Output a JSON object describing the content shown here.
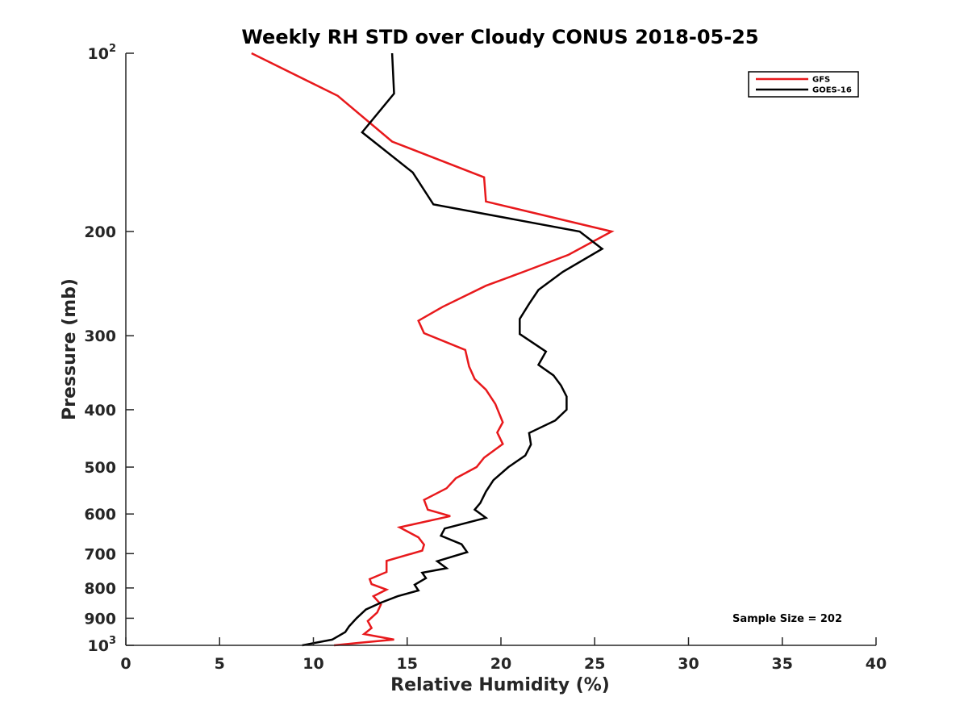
{
  "chart_data": {
    "type": "line",
    "title": "Weekly RH STD over Cloudy CONUS 2018-05-25",
    "xlabel": "Relative Humidity (%)",
    "ylabel": "Pressure (mb)",
    "xlim": [
      0,
      40
    ],
    "ylim": [
      100,
      1000
    ],
    "yscale": "log",
    "y_reversed": true,
    "grid": false,
    "legend_position": "top-right",
    "x_ticks": [
      0,
      5,
      10,
      15,
      20,
      25,
      30,
      35,
      40
    ],
    "y_ticks": [
      {
        "value": 100,
        "base": "10",
        "exp": "2"
      },
      {
        "value": 200,
        "label": "200"
      },
      {
        "value": 300,
        "label": "300"
      },
      {
        "value": 400,
        "label": "400"
      },
      {
        "value": 500,
        "label": "500"
      },
      {
        "value": 600,
        "label": "600"
      },
      {
        "value": 700,
        "label": "700"
      },
      {
        "value": 800,
        "label": "800"
      },
      {
        "value": 900,
        "label": "900"
      },
      {
        "value": 1000,
        "base": "10",
        "exp": "3"
      }
    ],
    "annotation": "Sample Size = 202",
    "series": [
      {
        "name": "GFS",
        "color": "#e8191c",
        "points": [
          [
            6.7,
            100
          ],
          [
            11.3,
            118
          ],
          [
            14.2,
            141
          ],
          [
            19.1,
            162
          ],
          [
            19.2,
            178
          ],
          [
            25.9,
            200
          ],
          [
            23.6,
            219
          ],
          [
            21.2,
            234
          ],
          [
            19.2,
            247
          ],
          [
            16.9,
            268
          ],
          [
            15.6,
            283
          ],
          [
            15.9,
            297
          ],
          [
            18.1,
            317
          ],
          [
            18.3,
            338
          ],
          [
            18.6,
            355
          ],
          [
            19.2,
            370
          ],
          [
            19.7,
            391
          ],
          [
            20.1,
            420
          ],
          [
            19.8,
            437
          ],
          [
            20.1,
            457
          ],
          [
            19.1,
            482
          ],
          [
            18.7,
            500
          ],
          [
            17.6,
            522
          ],
          [
            17.1,
            543
          ],
          [
            15.9,
            568
          ],
          [
            16.1,
            590
          ],
          [
            17.3,
            605
          ],
          [
            14.6,
            632
          ],
          [
            15.6,
            657
          ],
          [
            15.9,
            676
          ],
          [
            15.8,
            692
          ],
          [
            13.9,
            720
          ],
          [
            13.9,
            752
          ],
          [
            13.0,
            773
          ],
          [
            13.1,
            788
          ],
          [
            13.9,
            805
          ],
          [
            13.2,
            826
          ],
          [
            13.6,
            853
          ],
          [
            13.4,
            880
          ],
          [
            12.9,
            910
          ],
          [
            13.1,
            935
          ],
          [
            12.7,
            957
          ],
          [
            14.3,
            978
          ],
          [
            12.5,
            990
          ],
          [
            11.1,
            1000
          ]
        ]
      },
      {
        "name": "GOES-16",
        "color": "#000000",
        "points": [
          [
            14.2,
            100
          ],
          [
            14.3,
            117
          ],
          [
            12.6,
            136
          ],
          [
            15.3,
            159
          ],
          [
            16.4,
            180
          ],
          [
            24.2,
            200
          ],
          [
            25.4,
            214
          ],
          [
            23.3,
            234
          ],
          [
            22.0,
            251
          ],
          [
            21.5,
            265
          ],
          [
            21.0,
            281
          ],
          [
            21.0,
            298
          ],
          [
            22.4,
            319
          ],
          [
            22.0,
            336
          ],
          [
            22.8,
            350
          ],
          [
            23.2,
            364
          ],
          [
            23.5,
            380
          ],
          [
            23.5,
            400
          ],
          [
            22.9,
            417
          ],
          [
            21.5,
            438
          ],
          [
            21.6,
            458
          ],
          [
            21.3,
            478
          ],
          [
            20.4,
            500
          ],
          [
            19.6,
            526
          ],
          [
            19.2,
            550
          ],
          [
            18.9,
            575
          ],
          [
            18.6,
            590
          ],
          [
            19.2,
            609
          ],
          [
            17.0,
            635
          ],
          [
            16.8,
            653
          ],
          [
            17.9,
            675
          ],
          [
            18.2,
            696
          ],
          [
            16.6,
            721
          ],
          [
            17.1,
            741
          ],
          [
            15.8,
            754
          ],
          [
            16.0,
            770
          ],
          [
            15.4,
            790
          ],
          [
            15.6,
            808
          ],
          [
            14.5,
            826
          ],
          [
            13.6,
            847
          ],
          [
            12.8,
            870
          ],
          [
            12.3,
            900
          ],
          [
            11.9,
            929
          ],
          [
            11.7,
            950
          ],
          [
            11.0,
            978
          ],
          [
            9.4,
            1000
          ]
        ]
      }
    ]
  }
}
